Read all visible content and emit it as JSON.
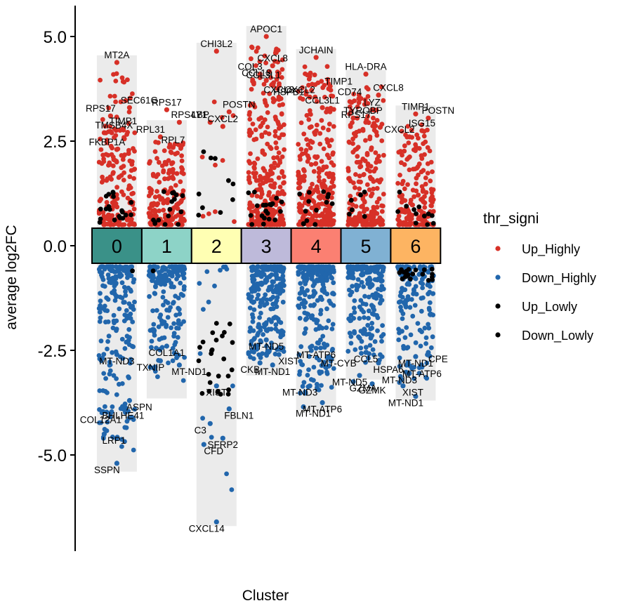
{
  "chart_data": {
    "type": "scatter",
    "xlabel": "Cluster",
    "ylabel": "average log2FC",
    "ylim": [
      -7.3,
      5.75
    ],
    "yticks": [
      {
        "value": 5.0,
        "label": "5.0"
      },
      {
        "value": 2.5,
        "label": "2.5"
      },
      {
        "value": 0.0,
        "label": "0.0"
      },
      {
        "value": -2.5,
        "label": "-2.5"
      },
      {
        "value": -5.0,
        "label": "-5.0"
      }
    ],
    "legend": {
      "title": "thr_signi",
      "position": "right",
      "entries": [
        {
          "name": "Up_Highly",
          "color": "#D73027"
        },
        {
          "name": "Down_Highly",
          "color": "#2166AC"
        },
        {
          "name": "Up_Lowly",
          "color": "#000000"
        },
        {
          "name": "Down_Lowly",
          "color": "#000000"
        }
      ]
    },
    "clusters": [
      {
        "label": "0",
        "color": "#3A9188",
        "ymin": -5.4,
        "ymax": 4.55,
        "up_density": 190,
        "down_density": 210,
        "up_lowly": 20,
        "down_lowly": 1
      },
      {
        "label": "1",
        "color": "#8DD3C7",
        "ymin": -3.65,
        "ymax": 3.0,
        "up_density": 180,
        "down_density": 180,
        "up_lowly": 16,
        "down_lowly": 1
      },
      {
        "label": "2",
        "color": "#FFFFB3",
        "ymin": -6.7,
        "ymax": 4.85,
        "up_density": 10,
        "down_density": 15,
        "up_lowly": 10,
        "down_lowly": 26
      },
      {
        "label": "3",
        "color": "#BEBADA",
        "ymin": -3.1,
        "ymax": 5.25,
        "up_density": 300,
        "down_density": 240,
        "up_lowly": 22,
        "down_lowly": 0
      },
      {
        "label": "4",
        "color": "#FB8072",
        "ymin": -3.95,
        "ymax": 4.7,
        "up_density": 300,
        "down_density": 240,
        "up_lowly": 14,
        "down_lowly": 0
      },
      {
        "label": "5",
        "color": "#80B1D3",
        "ymin": -3.2,
        "ymax": 4.2,
        "up_density": 230,
        "down_density": 200,
        "up_lowly": 6,
        "down_lowly": 0
      },
      {
        "label": "6",
        "color": "#FDB462",
        "ymin": -3.7,
        "ymax": 3.35,
        "up_density": 170,
        "down_density": 160,
        "up_lowly": 12,
        "down_lowly": 20
      }
    ],
    "labeled_genes": [
      {
        "cluster": 0,
        "gene": "MT2A",
        "y": 4.38,
        "side": "up"
      },
      {
        "cluster": 0,
        "gene": "SEC61G",
        "y": 3.3,
        "side": "up"
      },
      {
        "cluster": 0,
        "gene": "RPS17",
        "y": 3.1,
        "side": "up"
      },
      {
        "cluster": 0,
        "gene": "TIMP1",
        "y": 2.8,
        "side": "up"
      },
      {
        "cluster": 0,
        "gene": "TMSB4X",
        "y": 2.7,
        "side": "up"
      },
      {
        "cluster": 0,
        "gene": "FKBP1A",
        "y": 2.3,
        "side": "up"
      },
      {
        "cluster": 0,
        "gene": "MT-ND3",
        "y": -2.6,
        "side": "down"
      },
      {
        "cluster": 0,
        "gene": "ASPN",
        "y": -3.7,
        "side": "down"
      },
      {
        "cluster": 0,
        "gene": "COL12A1",
        "y": -4.0,
        "side": "down"
      },
      {
        "cluster": 0,
        "gene": "BHLHE41",
        "y": -3.9,
        "side": "down"
      },
      {
        "cluster": 0,
        "gene": "LRP1",
        "y": -4.5,
        "side": "down"
      },
      {
        "cluster": 0,
        "gene": "SSPN",
        "y": -5.2,
        "side": "down"
      },
      {
        "cluster": 1,
        "gene": "RPS17",
        "y": 3.25,
        "side": "up"
      },
      {
        "cluster": 1,
        "gene": "RPS4Y1",
        "y": 2.95,
        "side": "up"
      },
      {
        "cluster": 1,
        "gene": "RPL31",
        "y": 2.6,
        "side": "up"
      },
      {
        "cluster": 1,
        "gene": "RPL7",
        "y": 2.35,
        "side": "up"
      },
      {
        "cluster": 1,
        "gene": "COL1A1",
        "y": -2.4,
        "side": "down"
      },
      {
        "cluster": 1,
        "gene": "MT-ND1",
        "y": -2.85,
        "side": "down"
      },
      {
        "cluster": 1,
        "gene": "TXNIP",
        "y": -2.75,
        "side": "down"
      },
      {
        "cluster": 2,
        "gene": "CHI3L2",
        "y": 4.65,
        "side": "up"
      },
      {
        "cluster": 2,
        "gene": "POSTN",
        "y": 3.2,
        "side": "up"
      },
      {
        "cluster": 2,
        "gene": "LBP",
        "y": 2.95,
        "side": "up"
      },
      {
        "cluster": 2,
        "gene": "CXCL2",
        "y": 2.85,
        "side": "up"
      },
      {
        "cluster": 2,
        "gene": "XIST",
        "y": -3.35,
        "side": "down"
      },
      {
        "cluster": 2,
        "gene": "FBLN1",
        "y": -3.9,
        "side": "down"
      },
      {
        "cluster": 2,
        "gene": "C3",
        "y": -4.25,
        "side": "down"
      },
      {
        "cluster": 2,
        "gene": "SFRP2",
        "y": -4.6,
        "side": "down"
      },
      {
        "cluster": 2,
        "gene": "CFD",
        "y": -4.75,
        "side": "down"
      },
      {
        "cluster": 2,
        "gene": "CXCL14",
        "y": -6.6,
        "side": "down"
      },
      {
        "cluster": 3,
        "gene": "APOC1",
        "y": 5.0,
        "side": "up"
      },
      {
        "cluster": 3,
        "gene": "HSPB1",
        "y": 3.5,
        "side": "up"
      },
      {
        "cluster": 3,
        "gene": "COL3",
        "y": 4.1,
        "side": "up"
      },
      {
        "cluster": 3,
        "gene": "CXCL8",
        "y": 4.3,
        "side": "up"
      },
      {
        "cluster": 3,
        "gene": "CCL3L1",
        "y": 3.9,
        "side": "up"
      },
      {
        "cluster": 3,
        "gene": "CCL18",
        "y": 3.95,
        "side": "up"
      },
      {
        "cluster": 3,
        "gene": "CXCL8",
        "y": 3.55,
        "side": "up"
      },
      {
        "cluster": 3,
        "gene": "MT-ND5",
        "y": -2.25,
        "side": "down"
      },
      {
        "cluster": 3,
        "gene": "XIST",
        "y": -2.6,
        "side": "down"
      },
      {
        "cluster": 3,
        "gene": "CKB",
        "y": -2.8,
        "side": "down"
      },
      {
        "cluster": 3,
        "gene": "MT-ND1",
        "y": -2.85,
        "side": "down"
      },
      {
        "cluster": 4,
        "gene": "JCHAIN",
        "y": 4.5,
        "side": "up"
      },
      {
        "cluster": 4,
        "gene": "TIMP1",
        "y": 3.75,
        "side": "up"
      },
      {
        "cluster": 4,
        "gene": "CXCL2",
        "y": 3.55,
        "side": "up"
      },
      {
        "cluster": 4,
        "gene": "CCL3L1",
        "y": 3.3,
        "side": "up"
      },
      {
        "cluster": 4,
        "gene": "MT-ATP6",
        "y": -2.45,
        "side": "down"
      },
      {
        "cluster": 4,
        "gene": "MT-CYB",
        "y": -2.65,
        "side": "down"
      },
      {
        "cluster": 4,
        "gene": "MT-ND3",
        "y": -3.35,
        "side": "down"
      },
      {
        "cluster": 4,
        "gene": "MT-ATP6",
        "y": -3.75,
        "side": "down"
      },
      {
        "cluster": 4,
        "gene": "MT-ND1",
        "y": -3.85,
        "side": "down"
      },
      {
        "cluster": 5,
        "gene": "HLA-DRA",
        "y": 4.1,
        "side": "up"
      },
      {
        "cluster": 5,
        "gene": "CXCL8",
        "y": 3.6,
        "side": "up"
      },
      {
        "cluster": 5,
        "gene": "CD74",
        "y": 3.5,
        "side": "up"
      },
      {
        "cluster": 5,
        "gene": "LYZ",
        "y": 3.25,
        "side": "up"
      },
      {
        "cluster": 5,
        "gene": "TYROBP",
        "y": 3.05,
        "side": "up"
      },
      {
        "cluster": 5,
        "gene": "RPS17",
        "y": 2.95,
        "side": "up"
      },
      {
        "cluster": 5,
        "gene": "CCL5",
        "y": -2.55,
        "side": "down"
      },
      {
        "cluster": 5,
        "gene": "HSPA6",
        "y": -2.8,
        "side": "down"
      },
      {
        "cluster": 5,
        "gene": "MT-ND5",
        "y": -3.1,
        "side": "down"
      },
      {
        "cluster": 5,
        "gene": "GZMK",
        "y": -3.3,
        "side": "down"
      },
      {
        "cluster": 5,
        "gene": "GZMA",
        "y": -3.25,
        "side": "down"
      },
      {
        "cluster": 6,
        "gene": "TIMP1",
        "y": 3.15,
        "side": "up"
      },
      {
        "cluster": 6,
        "gene": "POSTN",
        "y": 3.05,
        "side": "up"
      },
      {
        "cluster": 6,
        "gene": "CXCL2",
        "y": 2.6,
        "side": "up"
      },
      {
        "cluster": 6,
        "gene": "ISG15",
        "y": 2.75,
        "side": "up"
      },
      {
        "cluster": 6,
        "gene": "MT-ND1",
        "y": -2.65,
        "side": "down"
      },
      {
        "cluster": 6,
        "gene": "CPE",
        "y": -2.55,
        "side": "down"
      },
      {
        "cluster": 6,
        "gene": "MT-ND3",
        "y": -3.05,
        "side": "down"
      },
      {
        "cluster": 6,
        "gene": "MT-ATP6",
        "y": -2.9,
        "side": "down"
      },
      {
        "cluster": 6,
        "gene": "XIST",
        "y": -3.35,
        "side": "down"
      },
      {
        "cluster": 6,
        "gene": "MT-ND1",
        "y": -3.6,
        "side": "down"
      }
    ]
  }
}
